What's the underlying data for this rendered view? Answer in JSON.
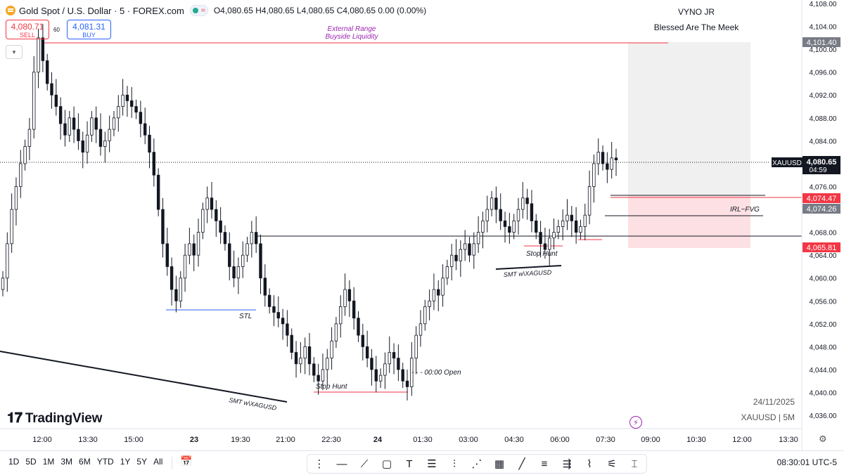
{
  "header": {
    "symbol_title": "Gold Spot / U.S. Dollar · 5 · FOREX.com",
    "ohlc": "O4,080.65 H4,080.65 L4,080.65 C4,080.65 0.00 (0.00%)",
    "icons": [
      "gold-logo-icon",
      "market-open-dot-icon",
      "wave-icon"
    ]
  },
  "trade": {
    "sell_price": "4,080.71",
    "sell_label": "SELL",
    "spread": "60",
    "buy_price": "4,081.31",
    "buy_label": "BUY",
    "collapse_icon": "chevron-down-icon"
  },
  "user": {
    "name": "VYNO JR",
    "tagline": "Blessed Are The Meek"
  },
  "annotations": {
    "external_range": "External Range",
    "buyside_liquidity": "Buyside Liquidity",
    "stl": "STL",
    "stop_hunt_1": "Stop Hunt",
    "open_label": "- - - 00:00 Open",
    "smt_1": "SMT w\\XAGUSD",
    "smt_2": "SMT w\\XAGUSD",
    "stop_hunt_2": "Stop Hunt",
    "irl_fvg": "IRL~FVG"
  },
  "price_scale": {
    "ticks": [
      "4,108.00",
      "4,104.00",
      "4,100.00",
      "4,096.00",
      "4,092.00",
      "4,088.00",
      "4,084.00",
      "4,076.00",
      "4,068.00",
      "4,064.00",
      "4,060.00",
      "4,056.00",
      "4,052.00",
      "4,048.00",
      "4,044.00",
      "4,040.00",
      "4,036.00"
    ],
    "labels": {
      "top_zone": "4,101.40",
      "symbol": "XAUUSD",
      "last": "4,080.65",
      "countdown": "04:59",
      "red_line": "4,074.47",
      "grey_line": "4,074.26",
      "bottom_zone": "4,065.81"
    }
  },
  "time_scale": [
    "12:00",
    "13:30",
    "15:00",
    "23",
    "19:30",
    "21:00",
    "22:30",
    "24",
    "01:30",
    "03:00",
    "04:30",
    "06:00",
    "07:30",
    "09:00",
    "10:30",
    "12:00",
    "13:30"
  ],
  "watermark": {
    "date": "24/11/2025",
    "symbol_tf": "XAUUSD | 5M"
  },
  "branding": "TradingView",
  "bottom_bar": {
    "ranges": [
      "1D",
      "5D",
      "1M",
      "3M",
      "6M",
      "YTD",
      "1Y",
      "5Y",
      "All"
    ],
    "calendar_icon": "calendar-icon",
    "tools": [
      "drag-handle-icon",
      "horizontal-line-icon",
      "trend-line-icon",
      "rectangle-icon",
      "text-icon",
      "fib-icon",
      "position-icon",
      "pattern-icon",
      "grid-icon",
      "brush-icon",
      "parallel-channel-icon",
      "regression-icon",
      "path-icon",
      "fan-icon",
      "measure-icon"
    ],
    "clock": "08:30:01 UTC-5"
  },
  "colors": {
    "up": "#131722",
    "down": "#131722",
    "red": "#f23645",
    "blue": "#2962ff",
    "purple": "#9c27b0",
    "zone_grey": "#f0f0f0",
    "zone_red": "#fde0e3"
  },
  "chart_data": {
    "type": "candlestick",
    "symbol": "XAUUSD",
    "timeframe": "5",
    "y_range": [
      4034,
      4110
    ],
    "last_price": 4080.65,
    "levels": {
      "external_range_buyside": 4101.4,
      "stl": 4055.6,
      "open_level": 4067.6,
      "fvg_top": 4074.47,
      "fvg_bottom": 4074.26,
      "stop_hunt_low": 4041.5,
      "zone_top": 4101.4,
      "zone_bottom": 4065.81
    },
    "closes": [
      4060,
      4066,
      4072,
      4076,
      4080,
      4083,
      4086,
      4096,
      4102,
      4098,
      4094,
      4092,
      4090,
      4087,
      4085,
      4088,
      4086,
      4084,
      4082,
      4085,
      4088,
      4086,
      4083,
      4084,
      4086,
      4088,
      4090,
      4092,
      4091,
      4090,
      4089,
      4087,
      4085,
      4082,
      4078,
      4072,
      4066,
      4062,
      4058,
      4056,
      4060,
      4064,
      4066,
      4064,
      4068,
      4072,
      4074,
      4072,
      4070,
      4068,
      4066,
      4062,
      4060,
      4062,
      4064,
      4066,
      4068,
      4066,
      4060,
      4057,
      4055,
      4054,
      4053,
      4052,
      4050,
      4047,
      4045,
      4046,
      4048,
      4045,
      4043,
      4042,
      4044,
      4046,
      4049,
      4052,
      4055,
      4058,
      4056,
      4053,
      4050,
      4048,
      4046,
      4044,
      4042,
      4043,
      4045,
      4047,
      4046,
      4044,
      4042,
      4041,
      4046,
      4050,
      4052,
      4055,
      4056,
      4058,
      4057,
      4060,
      4062,
      4064,
      4063,
      4065,
      4066,
      4064,
      4066,
      4068,
      4070,
      4072,
      4074,
      4072,
      4070,
      4069,
      4068,
      4070,
      4072,
      4074,
      4073,
      4070,
      4068,
      4066,
      4065,
      4067,
      4068,
      4069,
      4070,
      4071,
      4070,
      4068,
      4069,
      4071,
      4076,
      4080,
      4082,
      4080,
      4079,
      4081,
      4080.65
    ]
  }
}
